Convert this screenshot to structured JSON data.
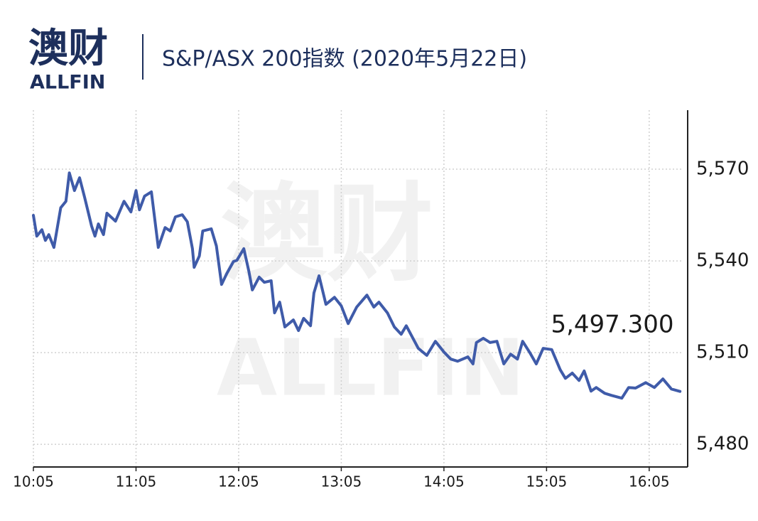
{
  "logo": {
    "name": "澳财",
    "brand": "ALLFIN"
  },
  "chart_data": {
    "type": "line",
    "title": "S&P/ASX 200指数 (2020年5月22日)",
    "x": [
      "10:05",
      "10:07",
      "10:10",
      "10:12",
      "10:14",
      "10:17",
      "10:21",
      "10:24",
      "10:26",
      "10:29",
      "10:32",
      "10:35",
      "10:39",
      "10:41",
      "10:43",
      "10:46",
      "10:48",
      "10:53",
      "10:58",
      "11:02",
      "11:05",
      "11:07",
      "11:10",
      "11:14",
      "11:18",
      "11:22",
      "11:25",
      "11:28",
      "11:32",
      "11:35",
      "11:38",
      "11:39",
      "11:42",
      "11:44",
      "11:49",
      "11:52",
      "11:55",
      "11:58",
      "12:02",
      "12:04",
      "12:08",
      "12:11",
      "12:13",
      "12:17",
      "12:20",
      "12:24",
      "12:26",
      "12:29",
      "12:32",
      "12:37",
      "12:40",
      "12:43",
      "12:47",
      "12:49",
      "12:52",
      "12:56",
      "13:01",
      "13:05",
      "13:09",
      "13:14",
      "13:20",
      "13:24",
      "13:27",
      "13:32",
      "13:36",
      "13:40",
      "13:43",
      "13:50",
      "13:55",
      "14:00",
      "14:05",
      "14:09",
      "14:13",
      "14:19",
      "14:22",
      "14:24",
      "14:28",
      "14:32",
      "14:36",
      "14:40",
      "14:44",
      "14:48",
      "14:51",
      "14:55",
      "14:59",
      "15:03",
      "15:08",
      "15:13",
      "15:16",
      "15:20",
      "15:24",
      "15:27",
      "15:31",
      "15:34",
      "15:39",
      "15:43",
      "15:49",
      "15:53",
      "15:57",
      "16:03",
      "16:08",
      "16:13",
      "16:18",
      "16:23"
    ],
    "values": [
      5554.9,
      5548.1,
      5550.2,
      5546.7,
      5548.6,
      5544.4,
      5557.4,
      5559.5,
      5568.8,
      5563.0,
      5567.2,
      5560.7,
      5551.4,
      5548.1,
      5552.1,
      5548.6,
      5555.6,
      5553.0,
      5559.5,
      5556.0,
      5563.0,
      5556.7,
      5561.2,
      5562.6,
      5544.4,
      5550.9,
      5549.8,
      5554.4,
      5555.1,
      5552.8,
      5544.0,
      5537.9,
      5541.6,
      5549.8,
      5550.5,
      5544.9,
      5532.3,
      5535.8,
      5539.8,
      5540.2,
      5544.0,
      5536.5,
      5530.5,
      5534.7,
      5533.0,
      5533.5,
      5523.0,
      5526.5,
      5518.4,
      5520.7,
      5517.2,
      5521.2,
      5518.8,
      5529.5,
      5535.1,
      5525.8,
      5528.1,
      5525.3,
      5519.5,
      5524.9,
      5528.8,
      5524.9,
      5526.5,
      5523.0,
      5518.4,
      5516.0,
      5518.8,
      5511.4,
      5509.1,
      5513.7,
      5510.2,
      5507.9,
      5507.2,
      5508.6,
      5506.3,
      5513.3,
      5514.7,
      5513.3,
      5513.7,
      5506.3,
      5509.5,
      5507.9,
      5513.7,
      5510.2,
      5506.3,
      5511.4,
      5511.0,
      5504.4,
      5501.6,
      5503.3,
      5500.9,
      5504.0,
      5497.4,
      5498.6,
      5496.7,
      5496.0,
      5495.1,
      5498.6,
      5498.4,
      5500.2,
      5498.6,
      5501.4,
      5498.1,
      5497.3
    ],
    "color": "#3f5ba9",
    "annotation": "5,497.300",
    "xlim": [
      "10:05",
      "16:25"
    ],
    "xticks": [
      "10:05",
      "11:05",
      "12:05",
      "13:05",
      "14:05",
      "15:05",
      "16:05"
    ],
    "ylim": [
      5472.6,
      5589.3
    ],
    "yticks": [
      {
        "value": 5480,
        "label": "5,480"
      },
      {
        "value": 5510,
        "label": "5,510"
      },
      {
        "value": 5540,
        "label": "5,540"
      },
      {
        "value": 5570,
        "label": "5,570"
      }
    ],
    "grid": true
  }
}
